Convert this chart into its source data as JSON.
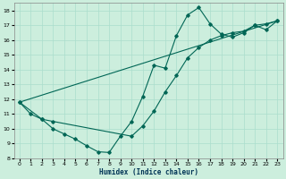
{
  "xlabel": "Humidex (Indice chaleur)",
  "background_color": "#cceedd",
  "grid_color": "#aaddcc",
  "line_color": "#006655",
  "xlim": [
    -0.5,
    23.5
  ],
  "ylim": [
    8,
    18.5
  ],
  "xticks": [
    0,
    1,
    2,
    3,
    4,
    5,
    6,
    7,
    8,
    9,
    10,
    11,
    12,
    13,
    14,
    15,
    16,
    17,
    18,
    19,
    20,
    21,
    22,
    23
  ],
  "yticks": [
    8,
    9,
    10,
    11,
    12,
    13,
    14,
    15,
    16,
    17,
    18
  ],
  "line1_x": [
    0,
    1,
    2,
    3,
    4,
    5,
    6,
    7,
    8,
    9,
    10,
    11,
    12,
    13,
    14,
    15,
    16,
    17,
    18,
    19,
    20,
    21,
    22,
    23
  ],
  "line1_y": [
    11.8,
    11.0,
    10.65,
    10.0,
    9.65,
    9.3,
    8.85,
    8.45,
    8.4,
    9.5,
    10.5,
    12.2,
    14.3,
    14.1,
    16.3,
    17.7,
    18.2,
    17.1,
    16.4,
    16.2,
    16.5,
    17.0,
    16.7,
    17.3
  ],
  "line2_x": [
    0,
    2,
    3,
    10,
    11,
    12,
    13,
    14,
    15,
    16,
    17,
    18,
    19,
    20,
    21,
    22,
    23
  ],
  "line2_y": [
    11.8,
    10.65,
    10.5,
    9.5,
    10.2,
    11.2,
    12.5,
    13.6,
    14.8,
    15.5,
    16.0,
    16.3,
    16.5,
    16.6,
    17.0,
    17.1,
    17.3
  ],
  "line3_x": [
    0,
    23
  ],
  "line3_y": [
    11.8,
    17.3
  ]
}
